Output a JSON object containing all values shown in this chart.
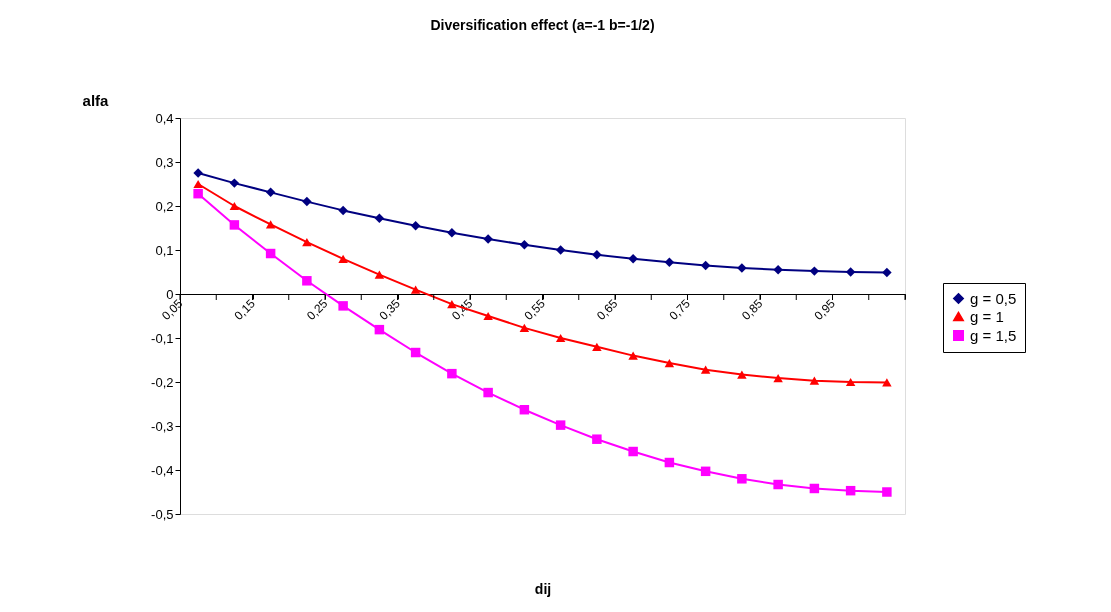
{
  "chart_data": {
    "type": "line",
    "title": "Diversification effect (a=-1 b=-1/2)",
    "xlabel": "dij",
    "ylabel": "alfa",
    "x": [
      0.075,
      0.125,
      0.175,
      0.225,
      0.275,
      0.325,
      0.375,
      0.425,
      0.475,
      0.525,
      0.575,
      0.625,
      0.675,
      0.725,
      0.775,
      0.825,
      0.875,
      0.925,
      0.975,
      1.025
    ],
    "series": [
      {
        "name": "g = 0,5",
        "color": "#000080",
        "marker": "diamond",
        "values": [
          0.275,
          0.252,
          0.231,
          0.21,
          0.19,
          0.172,
          0.155,
          0.139,
          0.125,
          0.112,
          0.1,
          0.089,
          0.08,
          0.072,
          0.065,
          0.059,
          0.055,
          0.052,
          0.05,
          0.049
        ]
      },
      {
        "name": "g = 1",
        "color": "#ff0000",
        "marker": "triangle",
        "values": [
          0.25,
          0.2,
          0.158,
          0.118,
          0.08,
          0.044,
          0.01,
          -0.023,
          -0.05,
          -0.077,
          -0.1,
          -0.12,
          -0.14,
          -0.157,
          -0.172,
          -0.183,
          -0.191,
          -0.197,
          -0.2,
          -0.201
        ]
      },
      {
        "name": "g = 1,5",
        "color": "#ff00ff",
        "marker": "square",
        "values": [
          0.228,
          0.157,
          0.092,
          0.03,
          -0.027,
          -0.081,
          -0.133,
          -0.181,
          -0.224,
          -0.263,
          -0.298,
          -0.33,
          -0.358,
          -0.383,
          -0.403,
          -0.42,
          -0.433,
          -0.442,
          -0.447,
          -0.45
        ]
      }
    ],
    "xlim": [
      0.05,
      1.05
    ],
    "xticks": [
      {
        "value": 0.05,
        "label": "0,05"
      },
      {
        "value": 0.1,
        "label": null
      },
      {
        "value": 0.15,
        "label": "0,15"
      },
      {
        "value": 0.2,
        "label": null
      },
      {
        "value": 0.25,
        "label": "0,25"
      },
      {
        "value": 0.3,
        "label": null
      },
      {
        "value": 0.35,
        "label": "0,35"
      },
      {
        "value": 0.4,
        "label": null
      },
      {
        "value": 0.45,
        "label": "0,45"
      },
      {
        "value": 0.5,
        "label": null
      },
      {
        "value": 0.55,
        "label": "0,55"
      },
      {
        "value": 0.6,
        "label": null
      },
      {
        "value": 0.65,
        "label": "0,65"
      },
      {
        "value": 0.7,
        "label": null
      },
      {
        "value": 0.75,
        "label": "0,75"
      },
      {
        "value": 0.8,
        "label": null
      },
      {
        "value": 0.85,
        "label": "0,85"
      },
      {
        "value": 0.9,
        "label": null
      },
      {
        "value": 0.95,
        "label": "0,95"
      },
      {
        "value": 1.0,
        "label": null
      },
      {
        "value": 1.05,
        "label": null
      }
    ],
    "ylim": [
      -0.5,
      0.4
    ],
    "yticks": [
      {
        "value": 0.4,
        "label": "0,4"
      },
      {
        "value": 0.3,
        "label": "0,3"
      },
      {
        "value": 0.2,
        "label": "0,2"
      },
      {
        "value": 0.1,
        "label": "0,1"
      },
      {
        "value": 0,
        "label": "0"
      },
      {
        "value": -0.1,
        "label": "-0,1"
      },
      {
        "value": -0.2,
        "label": "-0,2"
      },
      {
        "value": -0.3,
        "label": "-0,3"
      },
      {
        "value": -0.4,
        "label": "-0,4"
      },
      {
        "value": -0.5,
        "label": "-0,5"
      }
    ],
    "grid": false,
    "legend": "right"
  }
}
